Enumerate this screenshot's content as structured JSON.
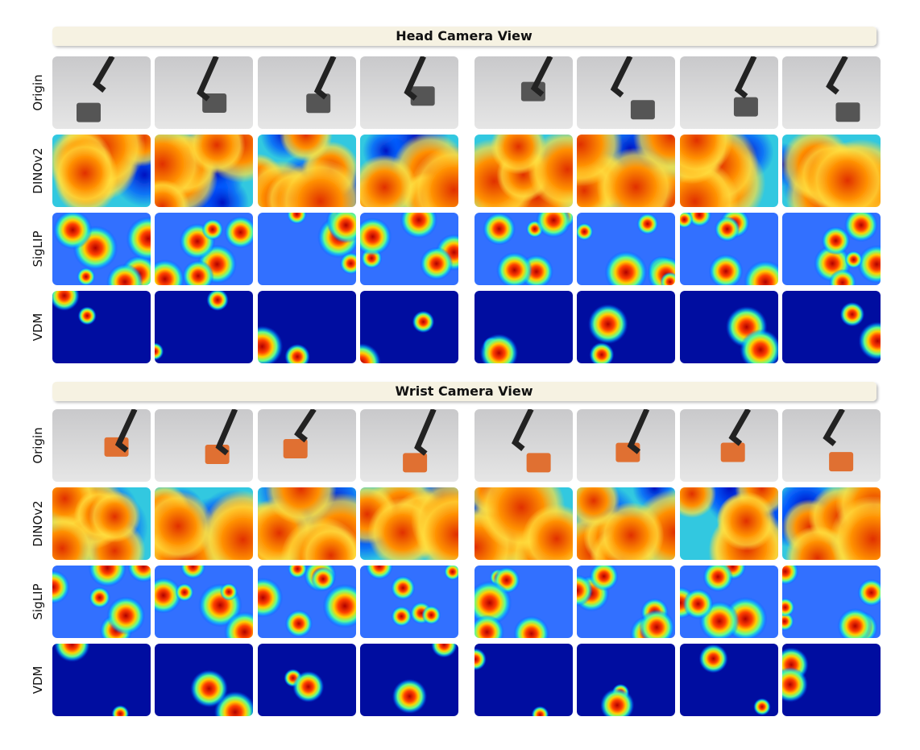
{
  "sections": [
    {
      "title": "Head Camera View",
      "rows": [
        "Origin",
        "DINOv2",
        "SigLIP",
        "VDM"
      ]
    },
    {
      "title": "Wrist Camera View",
      "rows": [
        "Origin",
        "DINOv2",
        "SigLIP",
        "VDM"
      ]
    }
  ]
}
